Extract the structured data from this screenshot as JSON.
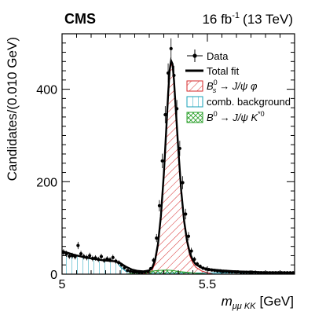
{
  "chart_data": {
    "type": "line",
    "experiment": "CMS",
    "lumi": {
      "value": "16 fb",
      "exponent": "-1",
      "energy": "(13 TeV)"
    },
    "xlabel": {
      "main": "m",
      "sub": "μμ KK",
      "unit": "[GeV]"
    },
    "ylabel": "Candidates/(0.010 GeV)",
    "xlim": [
      5.0,
      5.8
    ],
    "ylim": [
      0,
      520
    ],
    "x_ticks": [
      5.0,
      5.5
    ],
    "x_tick_labels": [
      "5",
      "5.5"
    ],
    "y_ticks": [
      0,
      200,
      400
    ],
    "y_tick_labels": [
      "0",
      "200",
      "400"
    ],
    "legend": {
      "position": "top-right",
      "entries": [
        {
          "key": "data",
          "label": "Data",
          "style": "marker"
        },
        {
          "key": "fit",
          "label": "Total fit",
          "style": "line"
        },
        {
          "key": "bs",
          "label_main": "B",
          "label_sup": "0",
          "label_sub": "s",
          "label_tail": "→ J/ψ φ",
          "style": "hatch-red"
        },
        {
          "key": "comb",
          "label": "comb. background",
          "style": "hatch-cyan"
        },
        {
          "key": "b0",
          "label_main": "B",
          "label_sup": "0",
          "label_tail": "→ J/ψ K",
          "label_tail_sup": "*0",
          "style": "hatch-green"
        }
      ]
    },
    "colors": {
      "signal": "#d62728",
      "combinatorial": "#17a2b8",
      "b0_peaking": "#2ca02c",
      "fit": "#000000",
      "data": "#000000"
    },
    "data_points": {
      "x": [
        5.005,
        5.015,
        5.025,
        5.035,
        5.045,
        5.055,
        5.065,
        5.075,
        5.085,
        5.095,
        5.105,
        5.115,
        5.125,
        5.135,
        5.145,
        5.155,
        5.165,
        5.175,
        5.185,
        5.195,
        5.205,
        5.215,
        5.225,
        5.235,
        5.245,
        5.255,
        5.265,
        5.275,
        5.285,
        5.295,
        5.305,
        5.315,
        5.325,
        5.335,
        5.345,
        5.355,
        5.365,
        5.375,
        5.385,
        5.395,
        5.405,
        5.415,
        5.425,
        5.435,
        5.445,
        5.455,
        5.465,
        5.475,
        5.485,
        5.495,
        5.505,
        5.515,
        5.525,
        5.535,
        5.545,
        5.555,
        5.565,
        5.575,
        5.585,
        5.595,
        5.605,
        5.615,
        5.625,
        5.635,
        5.645,
        5.655,
        5.665,
        5.675,
        5.685,
        5.695,
        5.705,
        5.715,
        5.725,
        5.735,
        5.745,
        5.755,
        5.765,
        5.775,
        5.785,
        5.795
      ],
      "y": [
        47,
        44,
        39,
        40,
        38,
        62,
        44,
        38,
        36,
        40,
        34,
        35,
        32,
        38,
        30,
        33,
        31,
        36,
        28,
        25,
        20,
        14,
        8,
        6,
        5,
        5,
        4,
        4,
        5,
        6,
        12,
        30,
        78,
        148,
        245,
        345,
        435,
        488,
        430,
        358,
        272,
        198,
        130,
        82,
        50,
        32,
        22,
        17,
        13,
        11,
        10,
        9,
        8,
        7,
        7,
        6,
        6,
        5,
        5,
        5,
        5,
        4,
        4,
        4,
        4,
        4,
        4,
        3,
        3,
        3,
        3,
        3,
        3,
        3,
        3,
        3,
        3,
        3,
        3,
        3
      ]
    },
    "fit_curve": {
      "x": [
        5.0,
        5.02,
        5.04,
        5.06,
        5.08,
        5.1,
        5.12,
        5.14,
        5.16,
        5.18,
        5.2,
        5.22,
        5.24,
        5.26,
        5.28,
        5.3,
        5.31,
        5.32,
        5.33,
        5.34,
        5.35,
        5.36,
        5.365,
        5.37,
        5.375,
        5.38,
        5.385,
        5.39,
        5.4,
        5.41,
        5.42,
        5.43,
        5.44,
        5.45,
        5.46,
        5.48,
        5.5,
        5.55,
        5.6,
        5.65,
        5.7,
        5.75,
        5.8
      ],
      "y": [
        50,
        46,
        42,
        39,
        36,
        34,
        32,
        30,
        29,
        28,
        24,
        16,
        10,
        7,
        6,
        8,
        14,
        30,
        65,
        125,
        215,
        330,
        390,
        440,
        462,
        455,
        420,
        370,
        270,
        180,
        115,
        72,
        45,
        30,
        21,
        14,
        11,
        8,
        6,
        5,
        4,
        4,
        3
      ]
    },
    "signal_component": {
      "x": [
        5.26,
        5.28,
        5.3,
        5.31,
        5.32,
        5.33,
        5.34,
        5.35,
        5.36,
        5.365,
        5.37,
        5.375,
        5.38,
        5.385,
        5.39,
        5.4,
        5.41,
        5.42,
        5.43,
        5.44,
        5.45,
        5.46,
        5.48,
        5.5,
        5.52
      ],
      "y": [
        0,
        1,
        3,
        8,
        24,
        58,
        118,
        208,
        322,
        382,
        432,
        455,
        448,
        413,
        363,
        263,
        173,
        108,
        66,
        39,
        24,
        15,
        7,
        3,
        0
      ]
    },
    "comb_background": {
      "x": [
        5.0,
        5.02,
        5.04,
        5.06,
        5.08,
        5.1,
        5.12,
        5.14,
        5.16,
        5.18,
        5.19,
        5.2,
        5.22,
        5.25,
        5.3,
        5.35,
        5.4,
        5.45,
        5.5,
        5.55,
        5.6,
        5.65,
        5.7,
        5.75,
        5.8
      ],
      "y": [
        50,
        46,
        42,
        39,
        36,
        34,
        32,
        30,
        29,
        28,
        25,
        16,
        6,
        3,
        2.5,
        2.5,
        2.5,
        2.5,
        2.5,
        2.5,
        2.5,
        2.5,
        2.5,
        2.5,
        2.5
      ]
    },
    "b0_component": {
      "x": [
        5.22,
        5.26,
        5.3,
        5.33,
        5.36,
        5.38,
        5.4,
        5.43,
        5.46,
        5.5
      ],
      "y": [
        0,
        3,
        6,
        8,
        9,
        8,
        6,
        4,
        2,
        0
      ]
    }
  }
}
